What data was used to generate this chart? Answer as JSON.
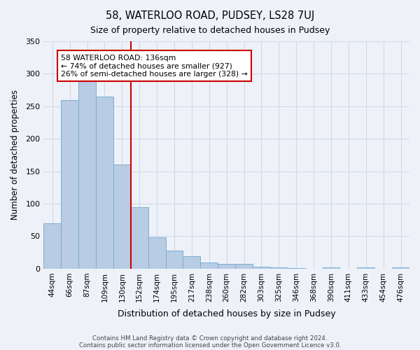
{
  "title1": "58, WATERLOO ROAD, PUDSEY, LS28 7UJ",
  "title2": "Size of property relative to detached houses in Pudsey",
  "xlabel": "Distribution of detached houses by size in Pudsey",
  "ylabel": "Number of detached properties",
  "bar_labels": [
    "44sqm",
    "66sqm",
    "87sqm",
    "109sqm",
    "130sqm",
    "152sqm",
    "174sqm",
    "195sqm",
    "217sqm",
    "238sqm",
    "260sqm",
    "282sqm",
    "303sqm",
    "325sqm",
    "346sqm",
    "368sqm",
    "390sqm",
    "411sqm",
    "433sqm",
    "454sqm",
    "476sqm"
  ],
  "bar_values": [
    70,
    260,
    295,
    265,
    160,
    95,
    48,
    28,
    19,
    10,
    7,
    7,
    3,
    2,
    1,
    0,
    2,
    0,
    2,
    0,
    2
  ],
  "bar_color": "#b8cce4",
  "bar_edge_color": "#7bafd4",
  "grid_color": "#d0d8e8",
  "bg_color": "#eef2f8",
  "annotation_text_line1": "58 WATERLOO ROAD: 136sqm",
  "annotation_text_line2": "← 74% of detached houses are smaller (927)",
  "annotation_text_line3": "26% of semi-detached houses are larger (328) →",
  "annotation_box_color": "#ffffff",
  "annotation_box_edge": "#cc0000",
  "red_line_x": 4.5,
  "red_line_color": "#cc0000",
  "ylim": [
    0,
    350
  ],
  "yticks": [
    0,
    50,
    100,
    150,
    200,
    250,
    300,
    350
  ],
  "footer1": "Contains HM Land Registry data © Crown copyright and database right 2024.",
  "footer2": "Contains public sector information licensed under the Open Government Licence v3.0."
}
